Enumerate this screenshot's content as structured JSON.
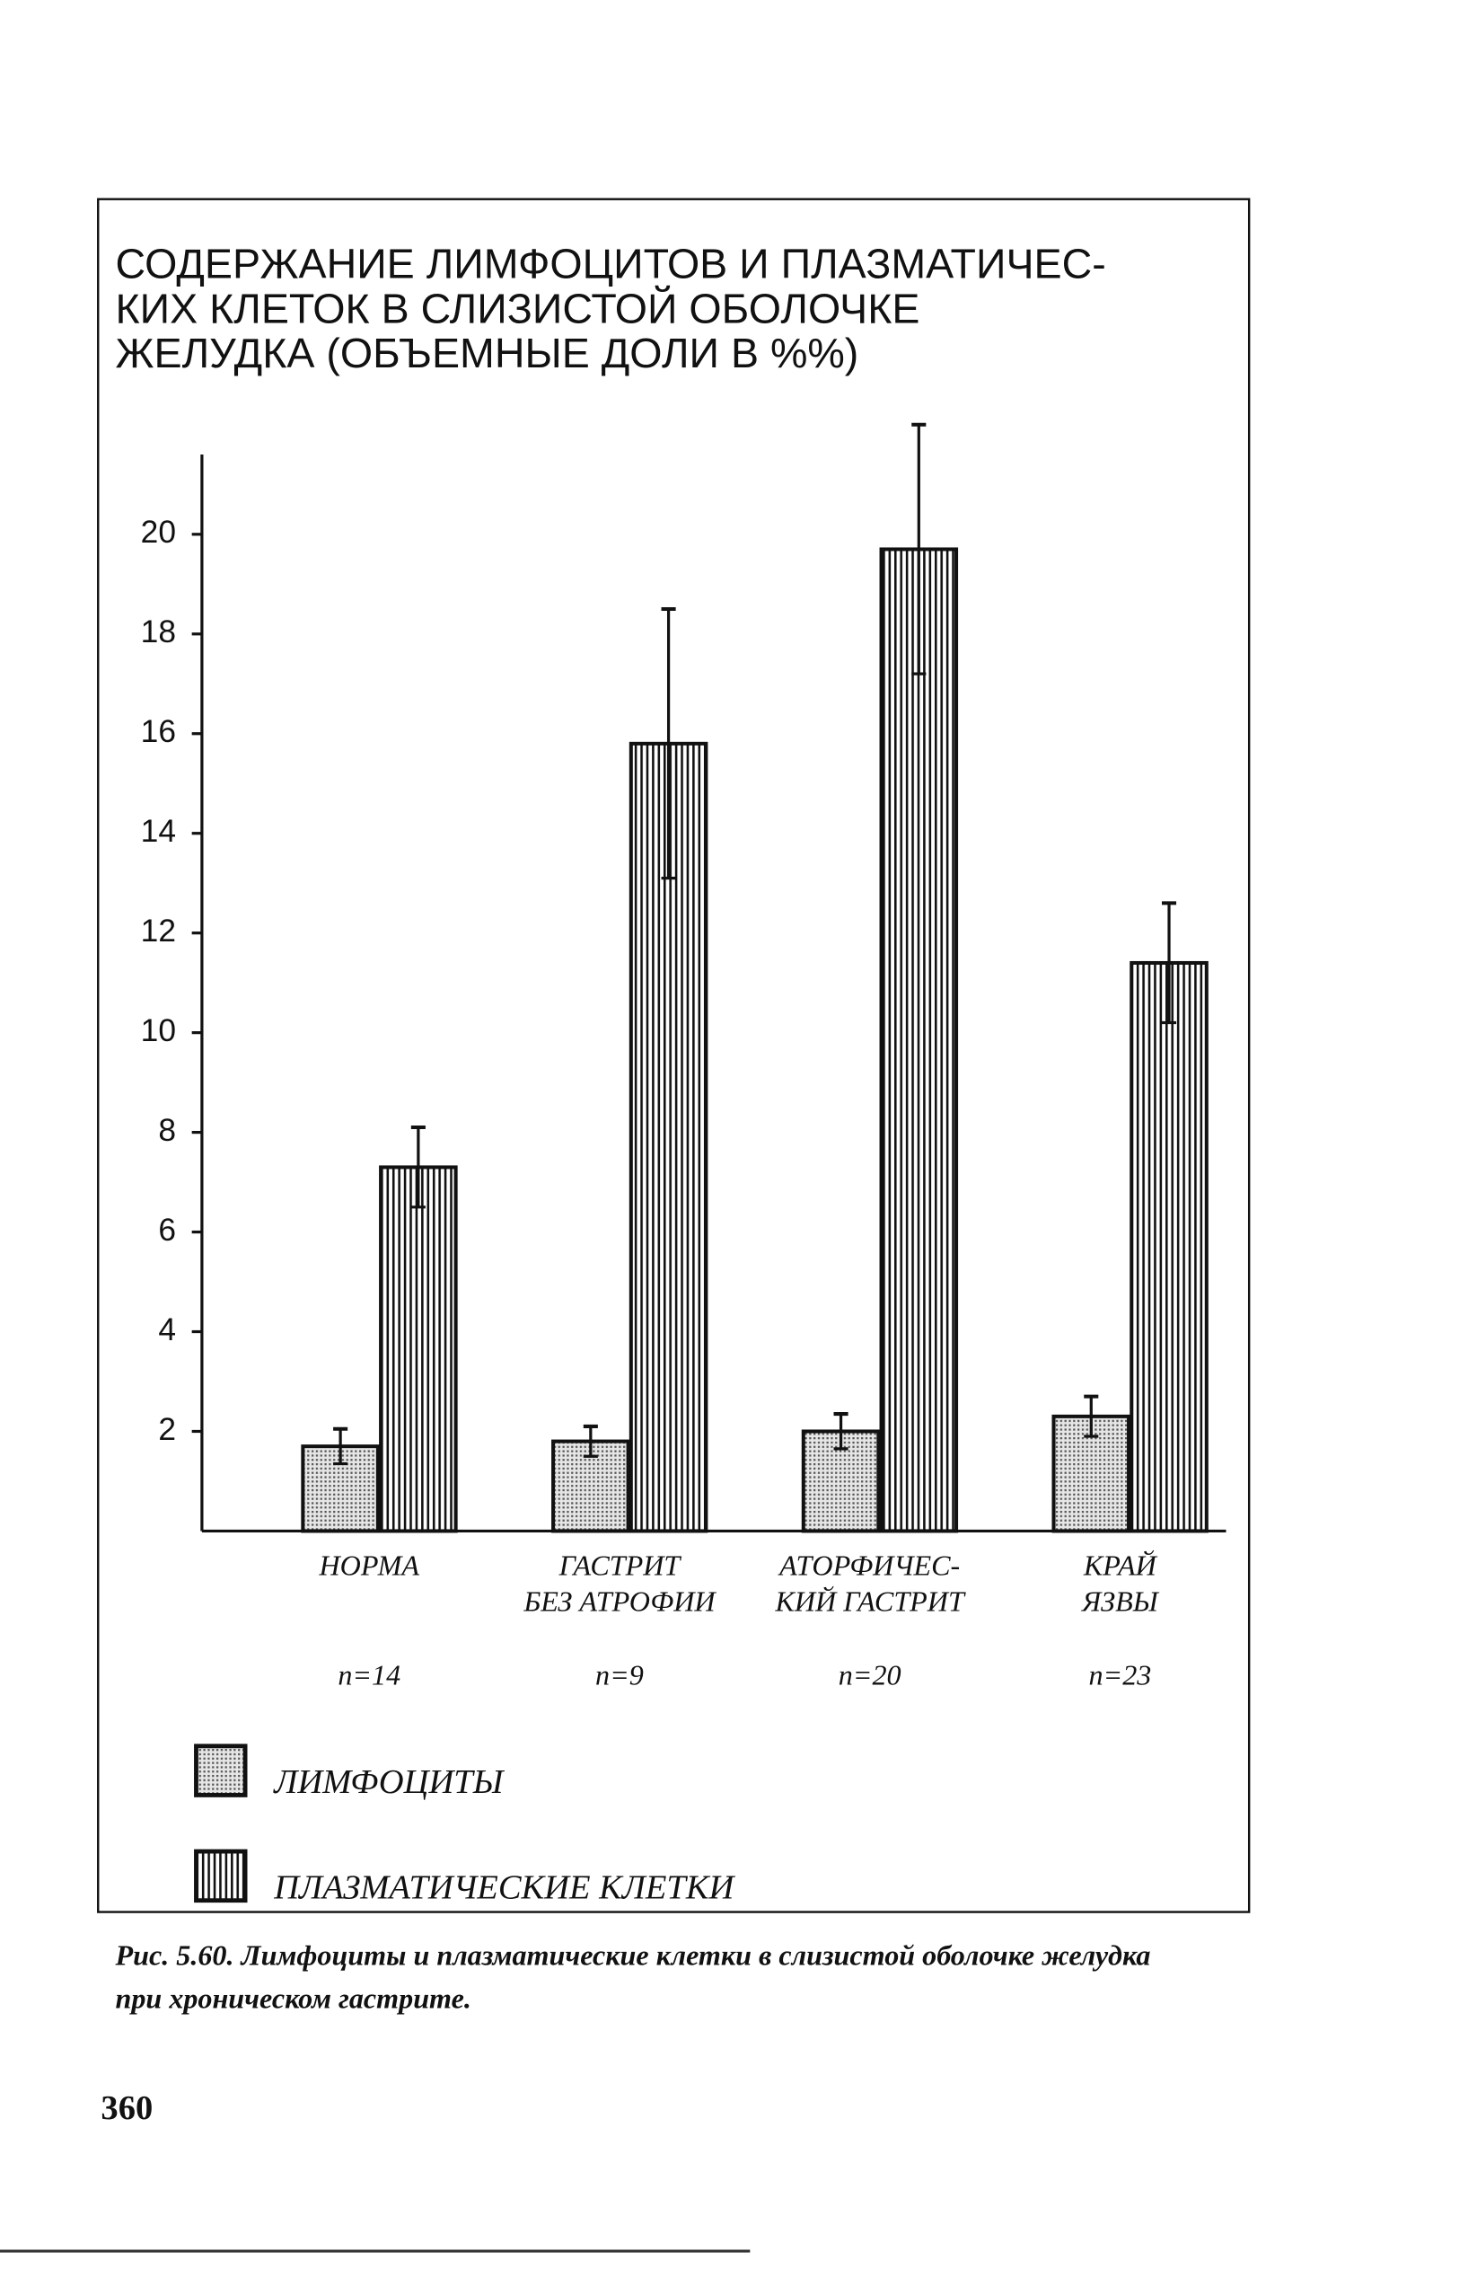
{
  "chart_data": {
    "type": "bar",
    "title": [
      "СОДЕРЖАНИЕ ЛИМФОЦИТОВ И ПЛАЗМАТИЧЕС-",
      "КИХ КЛЕТОК В СЛИЗИСТОЙ ОБОЛОЧКЕ",
      "ЖЕЛУДКА (ОБЪЕМНЫЕ ДОЛИ В %%)"
    ],
    "categories": [
      [
        "НОРМА"
      ],
      [
        "ГАСТРИТ",
        "БЕЗ АТРОФИИ"
      ],
      [
        "АТОРФИЧЕС-",
        "КИЙ ГАСТРИТ"
      ],
      [
        "КРАЙ",
        "ЯЗВЫ"
      ]
    ],
    "n_labels": [
      "n=14",
      "n=9",
      "n=20",
      "n=23"
    ],
    "series": [
      {
        "name": "ЛИМФОЦИТЫ",
        "color": "#c4c4c4",
        "pattern": "dots",
        "values": [
          1.7,
          1.8,
          2.0,
          2.3
        ],
        "errors": [
          0.35,
          0.3,
          0.35,
          0.4
        ]
      },
      {
        "name": "ПЛАЗМАТИЧЕСКИЕ КЛЕТКИ",
        "color": "#ffffff",
        "pattern": "vertical",
        "values": [
          7.3,
          15.8,
          19.7,
          11.4
        ],
        "errors": [
          0.8,
          2.7,
          2.5,
          1.2
        ]
      }
    ],
    "ylim": [
      0,
      21.6
    ],
    "yticks": [
      2,
      4,
      6,
      8,
      10,
      12,
      14,
      16,
      18,
      20
    ]
  },
  "caption": [
    "Рис. 5.60. Лимфоциты и плазматические клетки в слизистой оболочке желудка",
    "при хроническом гастрите."
  ],
  "page_number": "360"
}
